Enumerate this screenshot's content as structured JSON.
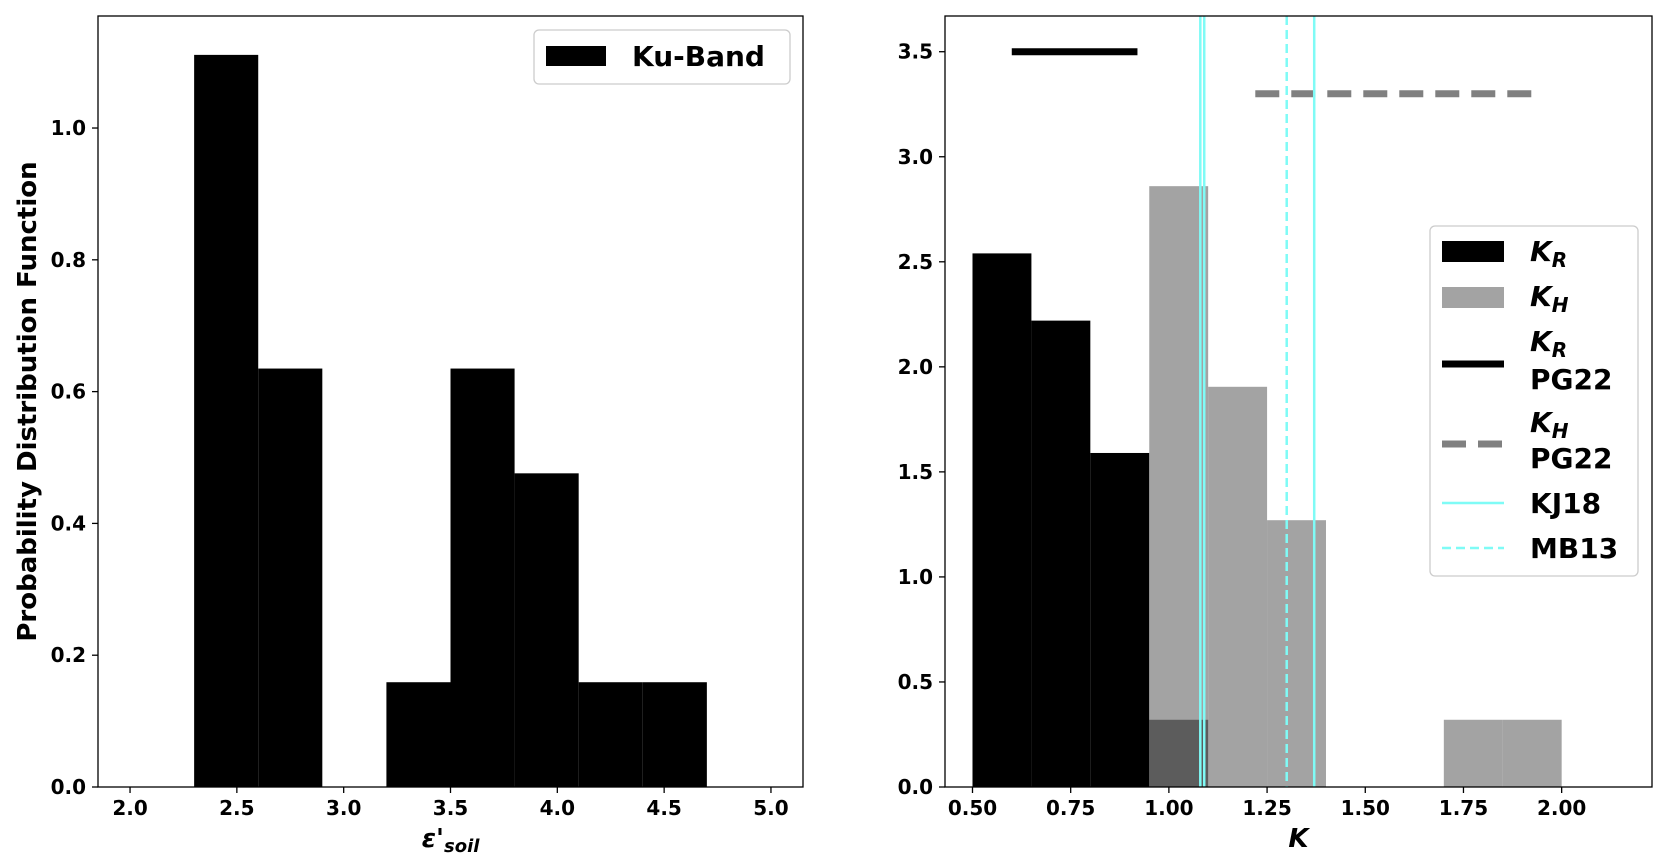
{
  "chart_data": [
    {
      "type": "bar",
      "subtype": "histogram",
      "xlabel": "ε'",
      "xlabel_sub": "soil",
      "ylabel": "Probability Distribution Function",
      "xlim": [
        1.85,
        5.15
      ],
      "ylim": [
        0.0,
        1.17
      ],
      "xticks": [
        "2.0",
        "2.5",
        "3.0",
        "3.5",
        "4.0",
        "4.5",
        "5.0"
      ],
      "yticks": [
        "0.0",
        "0.2",
        "0.4",
        "0.6",
        "0.8",
        "1.0"
      ],
      "legend_position": "top-right",
      "series": [
        {
          "name": "Ku-Band",
          "color": "#000000",
          "bins": [
            {
              "x0": 2.3,
              "x1": 2.6,
              "value": 1.111
            },
            {
              "x0": 2.6,
              "x1": 2.9,
              "value": 0.635
            },
            {
              "x0": 2.9,
              "x1": 3.2,
              "value": 0.0
            },
            {
              "x0": 3.2,
              "x1": 3.5,
              "value": 0.159
            },
            {
              "x0": 3.5,
              "x1": 3.8,
              "value": 0.635
            },
            {
              "x0": 3.8,
              "x1": 4.1,
              "value": 0.476
            },
            {
              "x0": 4.1,
              "x1": 4.4,
              "value": 0.159
            },
            {
              "x0": 4.4,
              "x1": 4.7,
              "value": 0.159
            }
          ]
        }
      ]
    },
    {
      "type": "bar",
      "subtype": "histogram",
      "xlabel": "K",
      "ylabel": "",
      "xlim": [
        0.43,
        2.23
      ],
      "ylim": [
        0.0,
        3.67
      ],
      "xticks": [
        "0.50",
        "0.75",
        "1.00",
        "1.25",
        "1.50",
        "1.75",
        "2.00"
      ],
      "yticks": [
        "0.0",
        "0.5",
        "1.0",
        "1.5",
        "2.0",
        "2.5",
        "3.0",
        "3.5"
      ],
      "legend_position": "center-right",
      "series": [
        {
          "name": "K",
          "name_sub": "R",
          "color": "#000000",
          "opacity": 1.0,
          "bins": [
            {
              "x0": 0.5,
              "x1": 0.65,
              "value": 2.54
            },
            {
              "x0": 0.65,
              "x1": 0.8,
              "value": 2.22
            },
            {
              "x0": 0.8,
              "x1": 0.95,
              "value": 1.59
            },
            {
              "x0": 0.95,
              "x1": 1.1,
              "value": 0.32
            }
          ]
        },
        {
          "name": "K",
          "name_sub": "H",
          "color": "#808080",
          "opacity": 0.72,
          "bins": [
            {
              "x0": 0.95,
              "x1": 1.1,
              "value": 2.86
            },
            {
              "x0": 1.1,
              "x1": 1.25,
              "value": 1.905
            },
            {
              "x0": 1.25,
              "x1": 1.4,
              "value": 1.27
            },
            {
              "x0": 1.4,
              "x1": 1.55,
              "value": 0.0
            },
            {
              "x0": 1.55,
              "x1": 1.7,
              "value": 0.0
            },
            {
              "x0": 1.7,
              "x1": 1.85,
              "value": 0.32
            },
            {
              "x0": 1.85,
              "x1": 2.0,
              "value": 0.32
            }
          ]
        },
        {
          "name": "K",
          "name_sub": "R",
          "name_line2": "PG22",
          "kind": "hline",
          "style": "solid",
          "color": "#000000",
          "y": 3.5,
          "x0": 0.6,
          "x1": 0.92
        },
        {
          "name": "K",
          "name_sub": "H",
          "name_line2": "PG22",
          "kind": "hline",
          "style": "dashed",
          "color": "#808080",
          "y": 3.3,
          "x0": 1.22,
          "x1": 1.95
        },
        {
          "name": "KJ18",
          "kind": "vline",
          "style": "solid",
          "color": "#7ffbf6",
          "x": [
            1.08,
            1.09,
            1.37
          ]
        },
        {
          "name": "MB13",
          "kind": "vline",
          "style": "dashed",
          "color": "#7ffbf6",
          "x": [
            1.3
          ]
        }
      ]
    }
  ]
}
